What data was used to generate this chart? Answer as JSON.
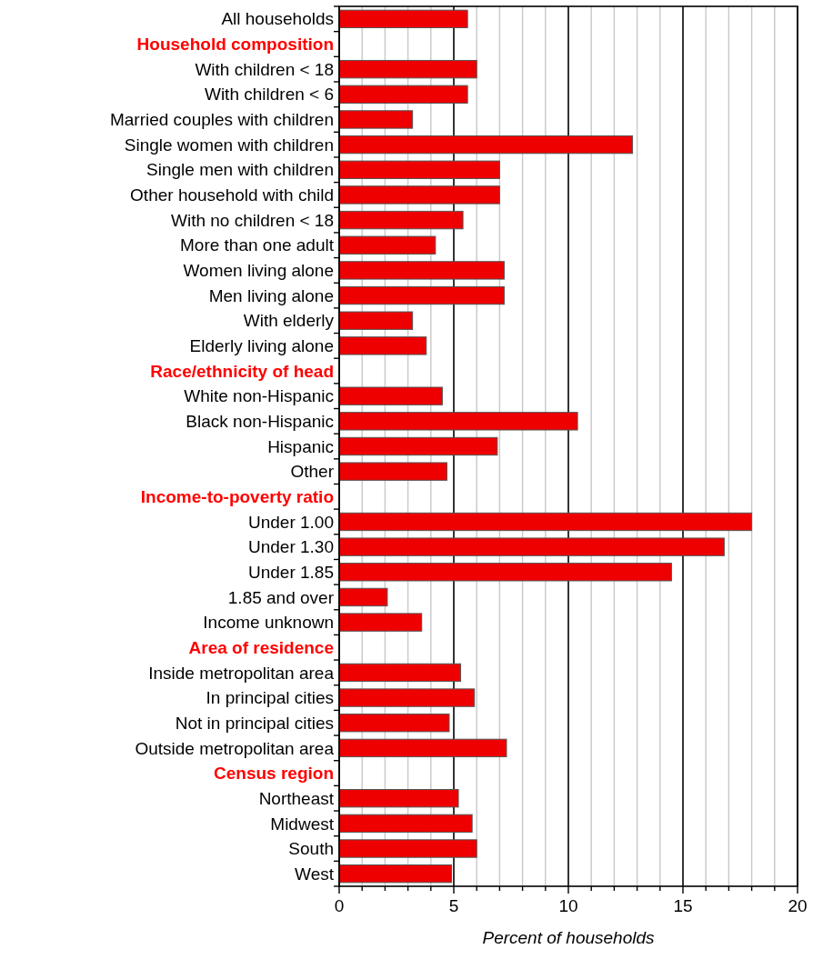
{
  "chart_data": {
    "type": "bar",
    "orientation": "horizontal",
    "xlabel": "Percent of households",
    "color": "#ee0000",
    "categories": [
      "All households",
      "Household composition",
      "With children < 18",
      "With children < 6",
      "Married couples with children",
      "Single women with children",
      "Single men with children",
      "Other household with child",
      "With no children < 18",
      "More than one adult",
      "Women living alone",
      "Men living alone",
      "With elderly",
      "Elderly living alone",
      "Race/ethnicity of head",
      "White non-Hispanic",
      "Black non-Hispanic",
      "Hispanic",
      "Other",
      "Income-to-poverty ratio",
      "Under 1.00",
      "Under 1.30",
      "Under 1.85",
      "1.85 and over",
      "Income unknown",
      "Area of residence",
      "Inside metropolitan area",
      "In principal cities",
      "Not in principal cities",
      "Outside metropolitan area",
      "Census region",
      "Northeast",
      "Midwest",
      "South",
      "West"
    ],
    "values": [
      5.6,
      null,
      6.0,
      5.6,
      3.2,
      12.8,
      7.0,
      7.0,
      5.4,
      4.2,
      7.2,
      7.2,
      3.2,
      3.8,
      null,
      4.5,
      10.4,
      6.9,
      4.7,
      null,
      18.0,
      16.8,
      14.5,
      2.1,
      3.6,
      null,
      5.3,
      5.9,
      4.8,
      7.3,
      null,
      5.2,
      5.8,
      6.0,
      4.9
    ],
    "xlim": [
      0,
      20
    ],
    "xticks": [
      0,
      {
        "value": 1,
        "label": null
      },
      {
        "value": 2,
        "label": null
      },
      {
        "value": 3,
        "label": null
      },
      {
        "value": 4,
        "label": null
      },
      5,
      {
        "value": 6,
        "label": null
      },
      {
        "value": 7,
        "label": null
      },
      {
        "value": 8,
        "label": null
      },
      {
        "value": 9,
        "label": null
      },
      10,
      {
        "value": 11,
        "label": null
      },
      {
        "value": 12,
        "label": null
      },
      {
        "value": 13,
        "label": null
      },
      {
        "value": 14,
        "label": null
      },
      15,
      {
        "value": 16,
        "label": null
      },
      {
        "value": 17,
        "label": null
      },
      {
        "value": 18,
        "label": null
      },
      {
        "value": 19,
        "label": null
      },
      20
    ],
    "grid": "x"
  }
}
